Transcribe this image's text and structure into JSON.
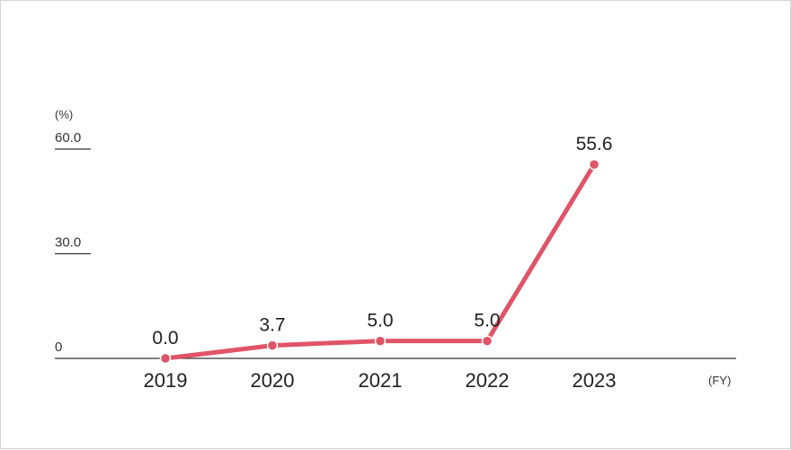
{
  "chart_data": {
    "type": "line",
    "y_unit": "(%)",
    "x_unit": "(FY)",
    "categories": [
      "2019",
      "2020",
      "2021",
      "2022",
      "2023"
    ],
    "values": [
      0.0,
      3.7,
      5.0,
      5.0,
      55.6
    ],
    "value_labels": [
      "0.0",
      "3.7",
      "5.0",
      "5.0",
      "55.6"
    ],
    "y_ticks": [
      "0",
      "30.0",
      "60.0"
    ],
    "y_tick_values": [
      0,
      30,
      60
    ],
    "ylim": [
      0,
      60
    ],
    "grid": false,
    "colors": {
      "line": "#e05468",
      "axis": "#333333"
    }
  }
}
